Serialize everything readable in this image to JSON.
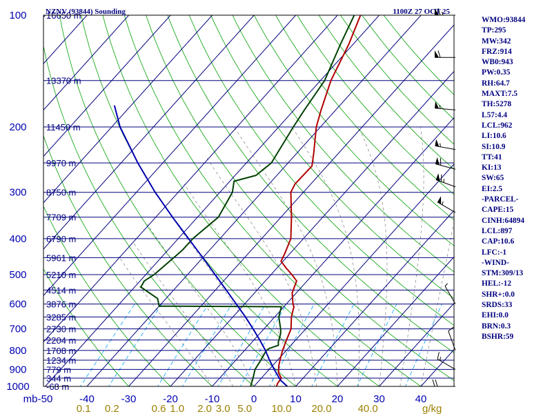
{
  "header": {
    "title": "NZNV (93844) Sounding",
    "time": "1100Z 27 OCT 25"
  },
  "colors": {
    "frame": "#000000",
    "isobar": "#00007f",
    "isotherm": "#00007f",
    "dry_adiabat": "#00a000",
    "moist_adiabat": "#7f7f7f",
    "mixing_ratio": "#00a0ff",
    "temperature": "#b00000",
    "dewpoint": "#004000",
    "parcel": "#0000b0",
    "pressure_labels": "#0000b0",
    "height_labels": "#000080",
    "temp_labels": "#0000b0",
    "mixing_labels": "#9c8000",
    "index_text": "#00007f"
  },
  "index_lines": [
    "WMO:93844",
    "TP:295",
    "MW:342",
    "FRZ:914",
    "WB0:943",
    "PW:0.35",
    "RH:64.7",
    "MAXT:7.5",
    "TH:5278",
    "L57:4.4",
    "LCL:962",
    "LI:10.6",
    "SI:10.9",
    "TT:41",
    "KI:13",
    "SW:65",
    "EI:2.5",
    "-PARCEL-",
    "CAPE:15",
    "CINH:64894",
    "LCL:897",
    "CAP:10.6",
    "LFC:-1",
    "-WIND-",
    "STM:309/13",
    "HEL:-12",
    "SHR+:0.0",
    "SRDS:33",
    "EHI:0.0",
    "BRN:0.3",
    "BSHR:59"
  ],
  "chart_data": {
    "type": "skew-t",
    "title": "NZNV (93844) Sounding",
    "valid_time": "1100Z 27 OCT 25",
    "y_axis": {
      "scale": "log",
      "unit": "mb",
      "range": [
        1000,
        100
      ],
      "tick_labels": [
        "100",
        "200",
        "300",
        "400",
        "500",
        "600",
        "700",
        "800",
        "900",
        "1000"
      ]
    },
    "x_axis": {
      "unit": "°C",
      "range": [
        -50,
        50
      ],
      "tick_labels": [
        "-50",
        "-40",
        "-30",
        "-20",
        "-10",
        "0",
        "10",
        "20",
        "30",
        "40"
      ]
    },
    "pressure_axis_label": "mb",
    "mixing_ratio_unit": "g/kg",
    "mixing_ratio_labels": [
      {
        "label": "0.1",
        "t": -40.8
      },
      {
        "label": "0.2",
        "t": -34.0
      },
      {
        "label": "0.6",
        "t": -22.8
      },
      {
        "label": "1.0",
        "t": -18.4
      },
      {
        "label": "2.0",
        "t": -11.8
      },
      {
        "label": "3.0",
        "t": -7.4
      },
      {
        "label": "5.0",
        "t": -2.2
      },
      {
        "label": "10.0",
        "t": 6.6
      },
      {
        "label": "20.0",
        "t": 16.2
      },
      {
        "label": "40.0",
        "t": 27.3
      }
    ],
    "height_labels": [
      {
        "p": 100,
        "label": "16650 m"
      },
      {
        "p": 150,
        "label": "13370 m"
      },
      {
        "p": 200,
        "label": "11450 m"
      },
      {
        "p": 250,
        "label": "9970 m"
      },
      {
        "p": 300,
        "label": "8750 m"
      },
      {
        "p": 350,
        "label": "7709 m"
      },
      {
        "p": 400,
        "label": "6790 m"
      },
      {
        "p": 450,
        "label": "5961 m"
      },
      {
        "p": 500,
        "label": "5210 m"
      },
      {
        "p": 550,
        "label": "4514 m"
      },
      {
        "p": 600,
        "label": "3876 m"
      },
      {
        "p": 650,
        "label": "3285 m"
      },
      {
        "p": 700,
        "label": "2730 m"
      },
      {
        "p": 750,
        "label": "2204 m"
      },
      {
        "p": 800,
        "label": "1708 m"
      },
      {
        "p": 850,
        "label": "1234 m"
      },
      {
        "p": 900,
        "label": "779 m"
      },
      {
        "p": 950,
        "label": "344 m"
      },
      {
        "p": 1000,
        "label": "-68 m"
      }
    ],
    "series": [
      {
        "name": "Temperature",
        "points": [
          [
            1000,
            5.4
          ],
          [
            980,
            5.0
          ],
          [
            950,
            4.8
          ],
          [
            920,
            3.0
          ],
          [
            880,
            1.5
          ],
          [
            850,
            0.6
          ],
          [
            800,
            -0.9
          ],
          [
            750,
            -2.2
          ],
          [
            700,
            -3.5
          ],
          [
            650,
            -6.0
          ],
          [
            610,
            -7.6
          ],
          [
            600,
            -8.4
          ],
          [
            560,
            -11.0
          ],
          [
            520,
            -12.5
          ],
          [
            500,
            -15.0
          ],
          [
            480,
            -17.8
          ],
          [
            460,
            -20.5
          ],
          [
            440,
            -21.2
          ],
          [
            400,
            -23.0
          ],
          [
            350,
            -27.5
          ],
          [
            300,
            -33.0
          ],
          [
            285,
            -33.8
          ],
          [
            255,
            -33.6
          ],
          [
            235,
            -36.0
          ],
          [
            200,
            -41.0
          ],
          [
            180,
            -43.5
          ],
          [
            150,
            -47.5
          ],
          [
            120,
            -51.0
          ],
          [
            100,
            -54.5
          ]
        ]
      },
      {
        "name": "Dewpoint",
        "points": [
          [
            1000,
            -0.8
          ],
          [
            950,
            -2.0
          ],
          [
            900,
            -3.4
          ],
          [
            850,
            -4.0
          ],
          [
            800,
            -4.8
          ],
          [
            790,
            -4.5
          ],
          [
            775,
            -3.0
          ],
          [
            760,
            -3.7
          ],
          [
            720,
            -5.0
          ],
          [
            700,
            -6.0
          ],
          [
            650,
            -9.0
          ],
          [
            610,
            -10.6
          ],
          [
            608,
            -40.0
          ],
          [
            580,
            -42.0
          ],
          [
            540,
            -48.5
          ],
          [
            520,
            -49.0
          ],
          [
            500,
            -48.0
          ],
          [
            430,
            -46.5
          ],
          [
            400,
            -46.5
          ],
          [
            350,
            -45.0
          ],
          [
            300,
            -47.0
          ],
          [
            280,
            -49.0
          ],
          [
            270,
            -45.0
          ],
          [
            250,
            -44.0
          ],
          [
            200,
            -46.5
          ],
          [
            180,
            -47.5
          ],
          [
            150,
            -49.0
          ],
          [
            120,
            -53.0
          ],
          [
            100,
            -56.0
          ]
        ]
      },
      {
        "name": "Parcel",
        "points": [
          [
            1000,
            8.0
          ],
          [
            962,
            5.0
          ],
          [
            900,
            1.2
          ],
          [
            850,
            -1.9
          ],
          [
            800,
            -5.0
          ],
          [
            750,
            -8.6
          ],
          [
            700,
            -12.6
          ],
          [
            650,
            -17.0
          ],
          [
            600,
            -22.0
          ],
          [
            550,
            -27.4
          ],
          [
            500,
            -33.4
          ],
          [
            450,
            -40.0
          ],
          [
            400,
            -47.5
          ],
          [
            350,
            -56.0
          ],
          [
            300,
            -65.5
          ],
          [
            250,
            -76.0
          ],
          [
            200,
            -88.0
          ],
          [
            175,
            -94.0
          ]
        ]
      }
    ],
    "wind_barbs": [
      {
        "p": 100,
        "dir": 270,
        "kt": 65
      },
      {
        "p": 130,
        "dir": 270,
        "kt": 60
      },
      {
        "p": 180,
        "dir": 275,
        "kt": 55
      },
      {
        "p": 230,
        "dir": 280,
        "kt": 55
      },
      {
        "p": 260,
        "dir": 285,
        "kt": 60
      },
      {
        "p": 290,
        "dir": 290,
        "kt": 65
      },
      {
        "p": 340,
        "dir": 300,
        "kt": 55
      },
      {
        "p": 600,
        "dir": 330,
        "kt": 5
      },
      {
        "p": 800,
        "dir": 340,
        "kt": 10
      },
      {
        "p": 900,
        "dir": 300,
        "kt": 15
      },
      {
        "p": 1000,
        "dir": 270,
        "kt": 20
      }
    ]
  }
}
